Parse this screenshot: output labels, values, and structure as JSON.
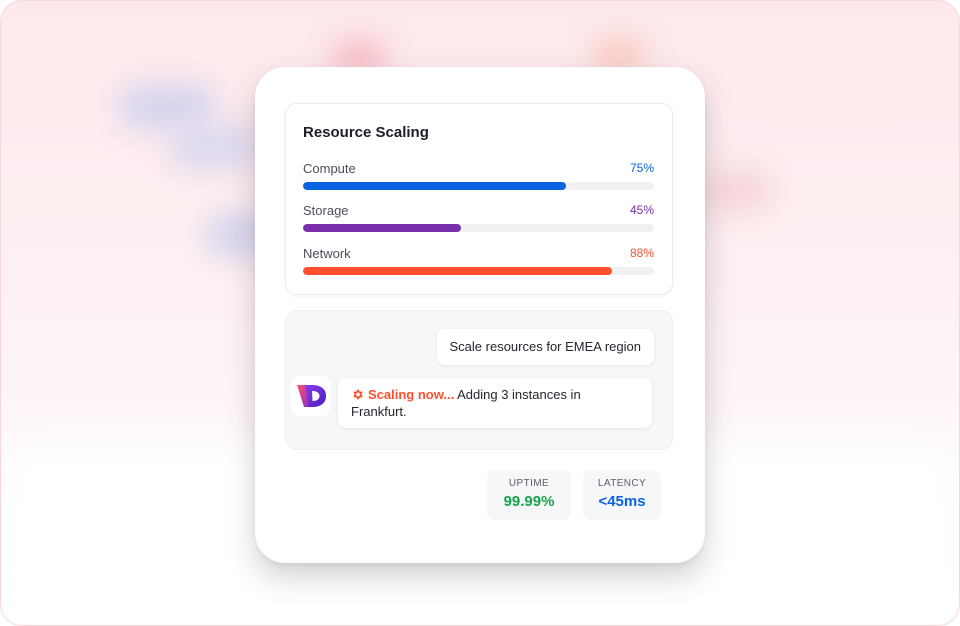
{
  "panel": {
    "title": "Resource Scaling",
    "metrics": [
      {
        "label": "Compute",
        "value_label": "75%",
        "fraction": 0.75,
        "color": "#0a63e0"
      },
      {
        "label": "Storage",
        "value_label": "45%",
        "fraction": 0.45,
        "color": "#7a2fad"
      },
      {
        "label": "Network",
        "value_label": "88%",
        "fraction": 0.88,
        "color": "#ff4f2e"
      }
    ]
  },
  "chat": {
    "user_message": "Scale resources for EMEA region",
    "assistant": {
      "avatar_icon": "d-logo-icon",
      "status_icon": "gear-icon",
      "status": "Scaling now...",
      "message": " Adding 3 instances in Frankfurt."
    }
  },
  "stats": [
    {
      "label": "UPTIME",
      "value": "99.99%",
      "color": "#17a34a"
    },
    {
      "label": "LATENCY",
      "value": "<45ms",
      "color": "#0a63e0"
    }
  ]
}
